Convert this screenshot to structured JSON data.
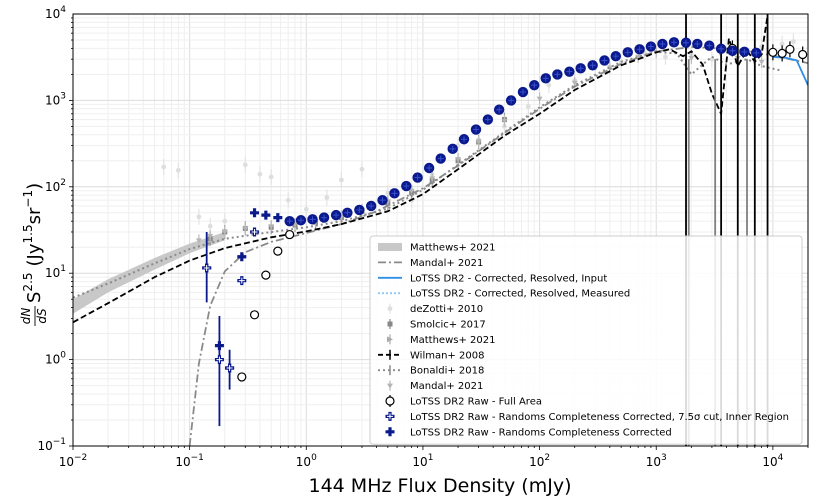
{
  "chart_data": {
    "type": "scatter",
    "title": "",
    "xlabel": "144 MHz Flux Density (mJy)",
    "ylabel_parts": {
      "frac_num": "dN",
      "frac_den": "dS",
      "s": "S",
      "s_exp": "2.5",
      "units": "(Jy",
      "units_exp": "1.5",
      "units_sr": "sr",
      "units_sr_exp": "−1",
      "units_close": ")"
    },
    "xscale": "log",
    "yscale": "log",
    "xlim": [
      0.01,
      20000
    ],
    "ylim": [
      0.1,
      10000
    ],
    "grid": true,
    "x_ticks": [
      {
        "value": 0.01,
        "base": "10",
        "exp": "−2"
      },
      {
        "value": 0.1,
        "base": "10",
        "exp": "−1"
      },
      {
        "value": 1,
        "base": "10",
        "exp": "0"
      },
      {
        "value": 10,
        "base": "10",
        "exp": "1"
      },
      {
        "value": 100,
        "base": "10",
        "exp": "2"
      },
      {
        "value": 1000,
        "base": "10",
        "exp": "3"
      },
      {
        "value": 10000,
        "base": "10",
        "exp": "4"
      }
    ],
    "y_ticks": [
      {
        "value": 0.1,
        "base": "10",
        "exp": "−1"
      },
      {
        "value": 1,
        "base": "10",
        "exp": "0"
      },
      {
        "value": 10,
        "base": "10",
        "exp": "1"
      },
      {
        "value": 100,
        "base": "10",
        "exp": "2"
      },
      {
        "value": 1000,
        "base": "10",
        "exp": "3"
      },
      {
        "value": 10000,
        "base": "10",
        "exp": "4"
      }
    ],
    "legend": [
      {
        "label": "Matthews+ 2021",
        "style": "band"
      },
      {
        "label": "Mandal+ 2021",
        "style": "dashdot"
      },
      {
        "label": "LoTSS DR2 - Corrected, Resolved, Input",
        "style": "solid-blue"
      },
      {
        "label": "LoTSS DR2 - Corrected, Resolved, Measured",
        "style": "dotted-lightblue"
      },
      {
        "label": "deZotti+ 2010",
        "style": "dot-lightgray"
      },
      {
        "label": "Smolcic+ 2017",
        "style": "square-gray"
      },
      {
        "label": "Matthews+ 2021",
        "style": "tri-right-gray"
      },
      {
        "label": "Wilman+ 2008",
        "style": "dashed-black-err"
      },
      {
        "label": "Bonaldi+ 2018",
        "style": "dotted-gray-err"
      },
      {
        "label": "Mandal+ 2021",
        "style": "tri-down-gray"
      },
      {
        "label": "LoTSS DR2 Raw - Full Area",
        "style": "open-circle"
      },
      {
        "label": "LoTSS DR2 Raw - Randoms Completeness Corrected, 7.5σ cut, Inner Region",
        "style": "open-plus"
      },
      {
        "label": "LoTSS DR2 Raw - Randoms Completeness Corrected",
        "style": "filled-plus"
      }
    ],
    "series": [
      {
        "name": "Matthews+ 2021 (band)",
        "x": [
          0.01,
          0.02,
          0.05,
          0.1,
          0.2
        ],
        "lower": [
          3.4,
          6,
          11,
          17,
          24
        ],
        "upper": [
          5,
          8.5,
          15,
          22,
          30
        ]
      },
      {
        "name": "Mandal+ 2021 (model)",
        "x": [
          0.1,
          0.12,
          0.15,
          0.2,
          0.3,
          0.5,
          0.8,
          1.2,
          2,
          4,
          10,
          20,
          50,
          100,
          200,
          500,
          1000,
          2000,
          5000,
          10000,
          20000
        ],
        "y": [
          0.1,
          0.9,
          4.2,
          10.5,
          17.5,
          23,
          27,
          31,
          37,
          52,
          96,
          176,
          420,
          800,
          1450,
          2650,
          3700,
          4150,
          3900,
          3300,
          2700
        ]
      },
      {
        "name": "Wilman+ 2008",
        "x": [
          0.01,
          0.02,
          0.05,
          0.1,
          0.2,
          0.5,
          1,
          2,
          5,
          10,
          20,
          50,
          100,
          200,
          500,
          800,
          1000,
          1300,
          1700,
          2000,
          2500,
          3000,
          3600,
          4200,
          5000,
          6000,
          7000,
          8000,
          9000
        ],
        "y": [
          2.7,
          4.5,
          9,
          14,
          19.5,
          26,
          30.5,
          37,
          52,
          82,
          160,
          390,
          700,
          1320,
          2550,
          3200,
          3600,
          3900,
          3250,
          3700,
          2600,
          1200,
          700,
          5200,
          2500,
          3800,
          2800,
          3400,
          9500
        ]
      },
      {
        "name": "Bonaldi+ 2018",
        "x": [
          0.01,
          0.02,
          0.05,
          0.1,
          0.2,
          0.5,
          1,
          2,
          5,
          10,
          20,
          50,
          100,
          200,
          500,
          1000,
          1500,
          2000,
          2500,
          3000,
          4000,
          6000,
          8000,
          12000
        ],
        "y": [
          5.2,
          7.6,
          13,
          19,
          25,
          30,
          34,
          40,
          56,
          92,
          180,
          430,
          830,
          1500,
          2800,
          3650,
          3500,
          2000,
          2600,
          3200,
          2600,
          3000,
          2500,
          2200
        ]
      },
      {
        "name": "LoTSS DR2 - Corrected, Resolved, Input",
        "x": [
          10000,
          13000,
          16000,
          20000
        ],
        "y": [
          3200,
          3100,
          2900,
          1500
        ]
      },
      {
        "name": "LoTSS DR2 Raw - Full Area",
        "x": [
          0.28,
          0.36,
          0.45,
          0.57,
          0.72,
          4500,
          10000,
          12000,
          14000,
          18000
        ],
        "y": [
          0.63,
          3.3,
          9.5,
          18,
          28,
          4000,
          3600,
          3500,
          3900,
          3400
        ]
      },
      {
        "name": "LoTSS DR2 Raw - Randoms Completeness Corrected, 7.5σ cut, Inner Region",
        "x": [
          0.14,
          0.18,
          0.22,
          0.28,
          0.36
        ],
        "y": [
          11.5,
          1.0,
          0.8,
          8.2,
          30
        ]
      },
      {
        "name": "LoTSS DR2 Raw - Randoms Completeness Corrected",
        "x": [
          0.14,
          0.18,
          0.22,
          0.28,
          0.36,
          0.45,
          0.57,
          0.72,
          0.9,
          1.13,
          1.42,
          1.8,
          2.25,
          2.85,
          3.6,
          4.5,
          5.7,
          7.2,
          9.0,
          11.3,
          14.2,
          18,
          22.5,
          28.5,
          36,
          45,
          57,
          72,
          90,
          113,
          142,
          180,
          225,
          285,
          360,
          450,
          570,
          720,
          900,
          1130,
          1420,
          1800,
          2250,
          2850,
          3600,
          4500,
          5700,
          7200
        ],
        "y": [
          11.5,
          1.45,
          0.8,
          15.5,
          50,
          47,
          44,
          40,
          41,
          42,
          44,
          47,
          50,
          54,
          60,
          70,
          84,
          102,
          128,
          165,
          212,
          275,
          355,
          460,
          600,
          780,
          1000,
          1250,
          1500,
          1800,
          2000,
          2150,
          2350,
          2550,
          2900,
          3250,
          3600,
          3900,
          4200,
          4500,
          4700,
          4650,
          4500,
          4300,
          3950,
          3750,
          3650,
          3550
        ]
      },
      {
        "name": "deZotti+ 2010 (sample)",
        "x": [
          0.06,
          0.08,
          0.12,
          0.15,
          0.2,
          0.3,
          0.4,
          0.5,
          0.7,
          1,
          1.5,
          2,
          3,
          5,
          8,
          12,
          20,
          30,
          50,
          80,
          120,
          200,
          300,
          500,
          800,
          1200,
          2000,
          3000,
          5000,
          8000,
          12000,
          15000
        ],
        "y": [
          170,
          155,
          45,
          35,
          40,
          180,
          140,
          130,
          70,
          55,
          75,
          120,
          160,
          85,
          70,
          140,
          300,
          350,
          500,
          850,
          1500,
          1700,
          2400,
          2800,
          3500,
          3200,
          3400,
          3000,
          3700,
          4200,
          4500,
          4800
        ]
      },
      {
        "name": "Smolcic+ 2017 (sample)",
        "x": [
          0.15,
          0.2,
          0.3,
          0.5,
          0.8,
          1.2,
          2,
          3,
          5,
          8,
          12,
          20,
          30,
          50
        ],
        "y": [
          25,
          30,
          33,
          34,
          36,
          39,
          44,
          52,
          65,
          85,
          118,
          200,
          330,
          600
        ]
      },
      {
        "name": "Mandal+ 2021 (points, sample)",
        "x": [
          0.12,
          0.15,
          0.2,
          0.3,
          0.5,
          0.8,
          1.2,
          2,
          3,
          5,
          8,
          12,
          20,
          30,
          50,
          100,
          200,
          400,
          700,
          1000,
          2000,
          3500,
          5000,
          8000,
          12000
        ],
        "y": [
          24,
          27,
          30,
          33,
          35,
          37,
          40,
          45,
          54,
          68,
          90,
          125,
          210,
          330,
          580,
          1050,
          1600,
          2400,
          3200,
          3600,
          3100,
          3900,
          3100,
          2800,
          3300
        ]
      }
    ]
  }
}
